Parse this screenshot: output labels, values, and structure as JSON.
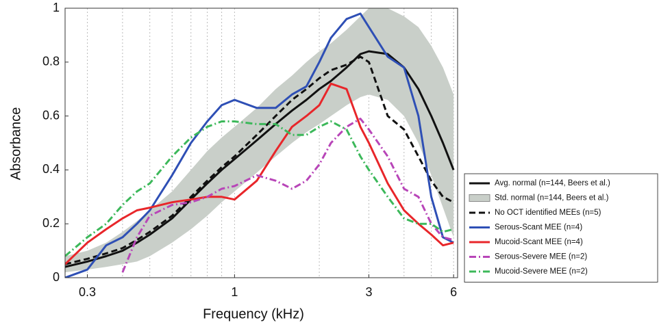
{
  "chart_data": {
    "type": "line",
    "xlabel": "Frequency (kHz)",
    "ylabel": "Absorbance",
    "xscale": "log",
    "xlim": [
      0.25,
      6.2
    ],
    "ylim": [
      0,
      1
    ],
    "xticks": [
      0.3,
      1,
      3,
      6
    ],
    "yticks": [
      0,
      0.2,
      0.4,
      0.6,
      0.8,
      1
    ],
    "xgrid": [
      0.3,
      0.4,
      0.5,
      0.6,
      0.7,
      0.8,
      0.9,
      1,
      2,
      3,
      4,
      5,
      6
    ],
    "x": [
      0.25,
      0.3,
      0.35,
      0.4,
      0.45,
      0.5,
      0.6,
      0.7,
      0.8,
      0.9,
      1,
      1.2,
      1.4,
      1.6,
      1.8,
      2,
      2.2,
      2.5,
      2.8,
      3,
      3.5,
      4,
      4.5,
      5,
      5.5,
      6
    ],
    "series": [
      {
        "name": "Avg. normal (n=144, Beers et al.)",
        "color": "#111111",
        "style": "solid",
        "values": [
          0.04,
          0.06,
          0.08,
          0.1,
          0.13,
          0.16,
          0.22,
          0.29,
          0.35,
          0.4,
          0.44,
          0.51,
          0.57,
          0.62,
          0.66,
          0.7,
          0.73,
          0.78,
          0.83,
          0.84,
          0.83,
          0.78,
          0.7,
          0.6,
          0.5,
          0.4
        ]
      },
      {
        "name": "Std. normal (n=144, Beers et al.)",
        "color": "#c9cfc9",
        "style": "band",
        "upper": [
          0.08,
          0.1,
          0.13,
          0.17,
          0.21,
          0.25,
          0.32,
          0.4,
          0.47,
          0.52,
          0.56,
          0.63,
          0.7,
          0.75,
          0.8,
          0.84,
          0.87,
          0.92,
          0.97,
          1,
          1,
          0.97,
          0.93,
          0.86,
          0.78,
          0.68
        ],
        "lower": [
          0.02,
          0.03,
          0.04,
          0.05,
          0.06,
          0.08,
          0.13,
          0.18,
          0.23,
          0.28,
          0.32,
          0.39,
          0.45,
          0.5,
          0.54,
          0.57,
          0.6,
          0.64,
          0.67,
          0.68,
          0.66,
          0.6,
          0.5,
          0.38,
          0.26,
          0.15
        ]
      },
      {
        "name": "No OCT identified MEEs  (n=5)",
        "color": "#111111",
        "style": "dashed",
        "values": [
          0.05,
          0.07,
          0.09,
          0.11,
          0.14,
          0.17,
          0.23,
          0.3,
          0.36,
          0.41,
          0.45,
          0.53,
          0.6,
          0.66,
          0.7,
          0.74,
          0.77,
          0.79,
          0.82,
          0.8,
          0.6,
          0.55,
          0.45,
          0.36,
          0.3,
          0.28
        ]
      },
      {
        "name": "Serous-Scant MEE  (n=4)",
        "color": "#2e4fb5",
        "style": "solid",
        "values": [
          0,
          0.03,
          0.12,
          0.15,
          0.2,
          0.25,
          0.38,
          0.5,
          0.58,
          0.64,
          0.66,
          0.63,
          0.63,
          0.68,
          0.71,
          0.8,
          0.89,
          0.96,
          0.98,
          0.93,
          0.82,
          0.78,
          0.6,
          0.3,
          0.15,
          0.13
        ]
      },
      {
        "name": "Mucoid-Scant MEE  (n=4)",
        "color": "#e8262a",
        "style": "solid",
        "values": [
          0.05,
          0.13,
          0.18,
          0.22,
          0.25,
          0.26,
          0.28,
          0.29,
          0.3,
          0.3,
          0.29,
          0.36,
          0.47,
          0.56,
          0.6,
          0.64,
          0.72,
          0.7,
          0.56,
          0.5,
          0.35,
          0.25,
          0.2,
          0.16,
          0.12,
          0.13
        ]
      },
      {
        "name": "Serous-Severe MEE  (n=2)",
        "color": "#b845b8",
        "style": "dashdot",
        "values": [
          null,
          null,
          null,
          0.02,
          0.15,
          0.23,
          0.27,
          0.28,
          0.3,
          0.33,
          0.34,
          0.38,
          0.36,
          0.33,
          0.36,
          0.42,
          0.5,
          0.56,
          0.59,
          0.55,
          0.45,
          0.33,
          0.3,
          0.2,
          0.15,
          0.14
        ]
      },
      {
        "name": "Mucoid-Severe MEE  (n=2)",
        "color": "#3cb85a",
        "style": "dashdot",
        "values": [
          0.08,
          0.15,
          0.2,
          0.27,
          0.32,
          0.35,
          0.45,
          0.52,
          0.56,
          0.58,
          0.58,
          0.57,
          0.57,
          0.53,
          0.53,
          0.56,
          0.58,
          0.55,
          0.45,
          0.4,
          0.3,
          0.22,
          0.2,
          0.2,
          0.17,
          0.18
        ]
      }
    ]
  }
}
